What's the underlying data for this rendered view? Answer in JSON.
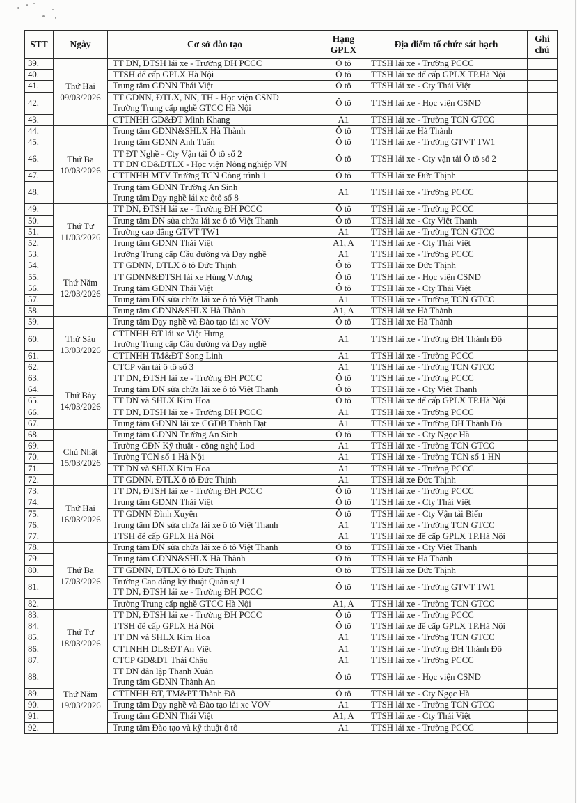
{
  "table": {
    "headers": {
      "stt": "STT",
      "ngay": "Ngày",
      "co_so": "Cơ sở đào tạo",
      "hang_gplx": "Hạng GPLX",
      "dia_diem": "Địa điểm tổ chức sát hạch",
      "ghi_chu": "Ghi chú"
    },
    "groups": [
      {
        "day": "Thứ Hai",
        "date": "09/03/2026",
        "rows": [
          {
            "stt": "39.",
            "co_so": [
              "TT DN, ĐTSH lái xe - Trường ĐH PCCC"
            ],
            "hang": "Ô tô",
            "dia_diem": "TTSH lái xe - Trường PCCC",
            "ghi_chu": ""
          },
          {
            "stt": "40.",
            "co_so": [
              "TTSH để cấp GPLX Hà Nội"
            ],
            "hang": "Ô tô",
            "dia_diem": "TTSH lái xe để cấp GPLX TP.Hà Nội",
            "ghi_chu": ""
          },
          {
            "stt": "41.",
            "co_so": [
              "Trung tâm GDNN Thái Việt"
            ],
            "hang": "Ô tô",
            "dia_diem": "TTSH lái xe - Cty Thái Việt",
            "ghi_chu": ""
          },
          {
            "stt": "42.",
            "co_so": [
              "TT GDNN, ĐTLX, NN, TH - Học viện CSND",
              "Trường Trung cấp nghề GTCC Hà Nội"
            ],
            "hang": "Ô tô",
            "dia_diem": "TTSH lái xe - Học viện CSND",
            "ghi_chu": ""
          },
          {
            "stt": "43.",
            "co_so": [
              "CTTNHH GD&ĐT Minh Khang"
            ],
            "hang": "A1",
            "dia_diem": "TTSH lái xe - Trường TCN GTCC",
            "ghi_chu": ""
          }
        ]
      },
      {
        "day": "Thứ Ba",
        "date": "10/03/2026",
        "rows": [
          {
            "stt": "44.",
            "co_so": [
              "Trung tâm GDNN&SHLX Hà Thành"
            ],
            "hang": "Ô tô",
            "dia_diem": "TTSH lái xe Hà Thành",
            "ghi_chu": ""
          },
          {
            "stt": "45.",
            "co_so": [
              "Trung tâm GDNN Anh Tuấn"
            ],
            "hang": "Ô tô",
            "dia_diem": "TTSH lái xe - Trường GTVT TW1",
            "ghi_chu": ""
          },
          {
            "stt": "46.",
            "co_so": [
              "TT ĐT Nghề - Cty Vận tải Ô tô số 2",
              "TT DN CĐ&ĐTLX - Học viện Nông nghiệp VN"
            ],
            "hang": "Ô tô",
            "dia_diem": "TTSH lái xe - Cty vận tải Ô tô số 2",
            "ghi_chu": ""
          },
          {
            "stt": "47.",
            "co_so": [
              "CTTNHH MTV Trường TCN Công trình 1"
            ],
            "hang": "Ô tô",
            "dia_diem": "TTSH lái xe Đức Thịnh",
            "ghi_chu": ""
          },
          {
            "stt": "48.",
            "co_so": [
              "Trung tâm GDNN Trường An Sinh",
              "Trung tâm Dạy nghề lái xe ôtô số 8"
            ],
            "hang": "A1",
            "dia_diem": "TTSH lái xe - Trường PCCC",
            "ghi_chu": ""
          }
        ]
      },
      {
        "day": "Thứ Tư",
        "date": "11/03/2026",
        "rows": [
          {
            "stt": "49.",
            "co_so": [
              "TT DN, ĐTSH lái xe - Trường ĐH PCCC"
            ],
            "hang": "Ô tô",
            "dia_diem": "TTSH lái xe - Trường PCCC",
            "ghi_chu": ""
          },
          {
            "stt": "50.",
            "co_so": [
              "Trung tâm DN sửa chữa lái xe ô tô Việt Thanh"
            ],
            "hang": "Ô tô",
            "dia_diem": "TTSH lái xe - Cty Việt Thanh",
            "ghi_chu": ""
          },
          {
            "stt": "51.",
            "co_so": [
              "Trường cao đẳng GTVT TW1"
            ],
            "hang": "A1",
            "dia_diem": "TTSH lái xe - Trường TCN GTCC",
            "ghi_chu": ""
          },
          {
            "stt": "52.",
            "co_so": [
              "Trung tâm GDNN Thái Việt"
            ],
            "hang": "A1, A",
            "dia_diem": "TTSH lái xe - Cty Thái Việt",
            "ghi_chu": ""
          },
          {
            "stt": "53.",
            "co_so": [
              "Trường Trung cấp Cầu đường và Dạy nghề"
            ],
            "hang": "A1",
            "dia_diem": "TTSH lái xe - Trường PCCC",
            "ghi_chu": ""
          }
        ]
      },
      {
        "day": "Thứ Năm",
        "date": "12/03/2026",
        "rows": [
          {
            "stt": "54.",
            "co_so": [
              "TT GDNN, ĐTLX ô tô Đức Thịnh"
            ],
            "hang": "Ô tô",
            "dia_diem": "TTSH lái xe Đức Thịnh",
            "ghi_chu": ""
          },
          {
            "stt": "55.",
            "co_so": [
              "TT GDNN&ĐTSH lái xe Hùng Vương"
            ],
            "hang": "Ô tô",
            "dia_diem": "TTSH lái xe - Học viện CSND",
            "ghi_chu": ""
          },
          {
            "stt": "56.",
            "co_so": [
              "Trung tâm GDNN Thái Việt"
            ],
            "hang": "Ô tô",
            "dia_diem": "TTSH lái xe - Cty Thái Việt",
            "ghi_chu": ""
          },
          {
            "stt": "57.",
            "co_so": [
              "Trung tâm DN sửa chữa lái xe ô tô Việt Thanh"
            ],
            "hang": "A1",
            "dia_diem": "TTSH lái xe - Trường TCN GTCC",
            "ghi_chu": ""
          },
          {
            "stt": "58.",
            "co_so": [
              "Trung tâm GDNN&SHLX Hà Thành"
            ],
            "hang": "A1, A",
            "dia_diem": "TTSH lái xe Hà Thành",
            "ghi_chu": ""
          }
        ]
      },
      {
        "day": "Thứ Sáu",
        "date": "13/03/2026",
        "rows": [
          {
            "stt": "59.",
            "co_so": [
              "Trung tâm Dạy nghề và Đào tạo lái xe VOV"
            ],
            "hang": "Ô tô",
            "dia_diem": "TTSH lái xe Hà Thành",
            "ghi_chu": ""
          },
          {
            "stt": "60.",
            "co_so": [
              "CTTNHH ĐT lái xe Việt Hưng",
              "Trường Trung cấp Cầu đường và Dạy nghề"
            ],
            "hang": "A1",
            "dia_diem": "TTSH lái xe - Trường ĐH Thành Đô",
            "ghi_chu": ""
          },
          {
            "stt": "61.",
            "co_so": [
              "CTTNHH TM&ĐT Song Linh"
            ],
            "hang": "A1",
            "dia_diem": "TTSH lái xe - Trường PCCC",
            "ghi_chu": ""
          },
          {
            "stt": "62.",
            "co_so": [
              "CTCP vận tải ô tô số 3"
            ],
            "hang": "A1",
            "dia_diem": "TTSH lái xe - Trường TCN GTCC",
            "ghi_chu": ""
          }
        ]
      },
      {
        "day": "Thứ Bảy",
        "date": "14/03/2026",
        "rows": [
          {
            "stt": "63.",
            "co_so": [
              "TT DN, ĐTSH lái xe - Trường ĐH PCCC"
            ],
            "hang": "Ô tô",
            "dia_diem": "TTSH lái xe - Trường PCCC",
            "ghi_chu": ""
          },
          {
            "stt": "64.",
            "co_so": [
              "Trung tâm DN sửa chữa lái xe ô tô Việt Thanh"
            ],
            "hang": "Ô tô",
            "dia_diem": "TTSH lái xe - Cty Việt Thanh",
            "ghi_chu": ""
          },
          {
            "stt": "65.",
            "co_so": [
              "TT DN và SHLX Kim Hoa"
            ],
            "hang": "Ô tô",
            "dia_diem": "TTSH lái xe để cấp GPLX TP.Hà Nội",
            "ghi_chu": ""
          },
          {
            "stt": "66.",
            "co_so": [
              "TT DN, ĐTSH lái xe - Trường ĐH PCCC"
            ],
            "hang": "A1",
            "dia_diem": "TTSH lái xe - Trường PCCC",
            "ghi_chu": ""
          },
          {
            "stt": "67.",
            "co_so": [
              "Trung tâm GDNN lái xe CGĐB Thành Đạt"
            ],
            "hang": "A1",
            "dia_diem": "TTSH lái xe - Trường ĐH Thành Đô",
            "ghi_chu": ""
          }
        ]
      },
      {
        "day": "Chủ Nhật",
        "date": "15/03/2026",
        "rows": [
          {
            "stt": "68.",
            "co_so": [
              "Trung tâm GDNN Trường An Sinh"
            ],
            "hang": "Ô tô",
            "dia_diem": "TTSH lái xe - Cty Ngọc Hà",
            "ghi_chu": ""
          },
          {
            "stt": "69.",
            "co_so": [
              "Trường CĐN Kỹ thuật - công nghệ Lod"
            ],
            "hang": "A1",
            "dia_diem": "TTSH lái xe - Trường TCN GTCC",
            "ghi_chu": ""
          },
          {
            "stt": "70.",
            "co_so": [
              "Trường TCN số 1 Hà Nội"
            ],
            "hang": "A1",
            "dia_diem": "TTSH lái xe - Trường TCN số 1 HN",
            "ghi_chu": ""
          },
          {
            "stt": "71.",
            "co_so": [
              "TT DN và SHLX Kim Hoa"
            ],
            "hang": "A1",
            "dia_diem": "TTSH lái xe - Trường PCCC",
            "ghi_chu": ""
          },
          {
            "stt": "72.",
            "co_so": [
              "TT GDNN, ĐTLX ô tô Đức Thịnh"
            ],
            "hang": "A1",
            "dia_diem": "TTSH lái xe Đức Thịnh",
            "ghi_chu": ""
          }
        ]
      },
      {
        "day": "Thứ Hai",
        "date": "16/03/2026",
        "rows": [
          {
            "stt": "73.",
            "co_so": [
              "TT DN, ĐTSH lái xe - Trường ĐH PCCC"
            ],
            "hang": "Ô tô",
            "dia_diem": "TTSH lái xe - Trường PCCC",
            "ghi_chu": ""
          },
          {
            "stt": "74.",
            "co_so": [
              "Trung tâm GDNN Thái Việt"
            ],
            "hang": "Ô tô",
            "dia_diem": "TTSH lái xe - Cty Thái Việt",
            "ghi_chu": ""
          },
          {
            "stt": "75.",
            "co_so": [
              "TT GDNN Đình Xuyên"
            ],
            "hang": "Ô tô",
            "dia_diem": "TTSH lái xe - Cty Vận tải Biển",
            "ghi_chu": ""
          },
          {
            "stt": "76.",
            "co_so": [
              "Trung tâm DN sửa chữa lái xe ô tô Việt Thanh"
            ],
            "hang": "A1",
            "dia_diem": "TTSH lái xe - Trường TCN GTCC",
            "ghi_chu": ""
          },
          {
            "stt": "77.",
            "co_so": [
              "TTSH để cấp GPLX Hà Nội"
            ],
            "hang": "A1",
            "dia_diem": "TTSH lái xe để cấp GPLX TP.Hà Nội",
            "ghi_chu": ""
          }
        ]
      },
      {
        "day": "Thứ Ba",
        "date": "17/03/2026",
        "rows": [
          {
            "stt": "78.",
            "co_so": [
              "Trung tâm DN sửa chữa lái xe ô tô Việt Thanh"
            ],
            "hang": "Ô tô",
            "dia_diem": "TTSH lái xe - Cty Việt Thanh",
            "ghi_chu": ""
          },
          {
            "stt": "79.",
            "co_so": [
              "Trung tâm GDNN&SHLX Hà Thành"
            ],
            "hang": "Ô tô",
            "dia_diem": "TTSH lái xe Hà Thành",
            "ghi_chu": ""
          },
          {
            "stt": "80.",
            "co_so": [
              "TT GDNN, ĐTLX ô tô Đức Thịnh"
            ],
            "hang": "Ô tô",
            "dia_diem": "TTSH lái xe Đức Thịnh",
            "ghi_chu": ""
          },
          {
            "stt": "81.",
            "co_so": [
              "Trường Cao đẳng kỹ thuật Quân sự 1",
              "TT DN, ĐTSH lái xe - Trường ĐH PCCC"
            ],
            "hang": "Ô tô",
            "dia_diem": "TTSH lái xe - Trường GTVT TW1",
            "ghi_chu": ""
          },
          {
            "stt": "82.",
            "co_so": [
              "Trường Trung cấp nghề GTCC Hà Nội"
            ],
            "hang": "A1, A",
            "dia_diem": "TTSH lái xe - Trường TCN GTCC",
            "ghi_chu": ""
          }
        ]
      },
      {
        "day": "Thứ Tư",
        "date": "18/03/2026",
        "rows": [
          {
            "stt": "83.",
            "co_so": [
              "TT DN, ĐTSH lái xe - Trường ĐH PCCC"
            ],
            "hang": "Ô tô",
            "dia_diem": "TTSH lái xe - Trường PCCC",
            "ghi_chu": ""
          },
          {
            "stt": "84.",
            "co_so": [
              "TTSH để cấp GPLX Hà Nội"
            ],
            "hang": "Ô tô",
            "dia_diem": "TTSH lái xe để cấp GPLX TP.Hà Nội",
            "ghi_chu": ""
          },
          {
            "stt": "85.",
            "co_so": [
              "TT DN và SHLX Kim Hoa"
            ],
            "hang": "A1",
            "dia_diem": "TTSH lái xe - Trường TCN GTCC",
            "ghi_chu": ""
          },
          {
            "stt": "86.",
            "co_so": [
              "CTTNHH DL&ĐT An Việt"
            ],
            "hang": "A1",
            "dia_diem": "TTSH lái xe - Trường ĐH Thành Đô",
            "ghi_chu": ""
          },
          {
            "stt": "87.",
            "co_so": [
              "CTCP GD&ĐT Thái Châu"
            ],
            "hang": "A1",
            "dia_diem": "TTSH lái xe - Trường PCCC",
            "ghi_chu": ""
          }
        ]
      },
      {
        "day": "Thứ Năm",
        "date": "19/03/2026",
        "rows": [
          {
            "stt": "88.",
            "co_so": [
              "TT DN dân lập Thanh Xuân",
              "Trung tâm GDNN Thành An"
            ],
            "hang": "Ô tô",
            "dia_diem": "TTSH lái xe - Học viện CSND",
            "ghi_chu": ""
          },
          {
            "stt": "89.",
            "co_so": [
              "CTTNHH ĐT, TM&PT Thành Đô"
            ],
            "hang": "Ô tô",
            "dia_diem": "TTSH lái xe - Cty Ngọc Hà",
            "ghi_chu": ""
          },
          {
            "stt": "90.",
            "co_so": [
              "Trung tâm Dạy nghề và Đào tạo lái xe VOV"
            ],
            "hang": "A1",
            "dia_diem": "TTSH lái xe - Trường TCN GTCC",
            "ghi_chu": ""
          },
          {
            "stt": "91.",
            "co_so": [
              "Trung tâm GDNN Thái Việt"
            ],
            "hang": "A1, A",
            "dia_diem": "TTSH lái xe - Cty Thái Việt",
            "ghi_chu": ""
          },
          {
            "stt": "92.",
            "co_so": [
              "Trung tâm Đào tạo và kỹ thuật ô tô"
            ],
            "hang": "A1",
            "dia_diem": "TTSH lái xe - Trường PCCC",
            "ghi_chu": ""
          }
        ]
      }
    ]
  }
}
